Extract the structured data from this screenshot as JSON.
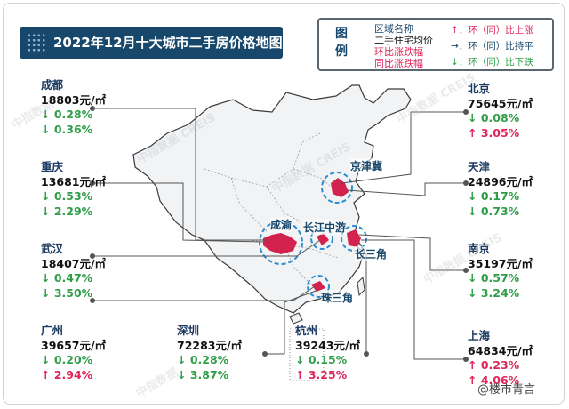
{
  "title": "2022年12月十大城市二手房价格地图",
  "legend": {
    "heading": "图例",
    "lines": [
      "区域名称",
      "二手住宅均价",
      "环比涨跌幅",
      "同比涨跌幅"
    ],
    "arrows": [
      "↑：环（同）比上涨",
      "→：环（同）比持平",
      "↓：环（同）比下跌"
    ],
    "colors": {
      "region": "#17476b",
      "price": "#111111",
      "mom": "#e0255a",
      "yoy": "#e0255a",
      "up": "#e0255a",
      "flat": "#17476b",
      "down": "#2f9e49"
    }
  },
  "regions": [
    "京津冀",
    "成渝",
    "长江中游",
    "长三角",
    "珠三角"
  ],
  "cities": {
    "chengdu": {
      "name": "成都",
      "price": "18803元/㎡",
      "mom": "↓ 0.28%",
      "yoy": "↓ 0.36%"
    },
    "chongqing": {
      "name": "重庆",
      "price": "13681元/㎡",
      "mom": "↓ 0.53%",
      "yoy": "↓ 2.29%"
    },
    "wuhan": {
      "name": "武汉",
      "price": "18407元/㎡",
      "mom": "↓ 0.47%",
      "yoy": "↓ 3.50%"
    },
    "guangzhou": {
      "name": "广州",
      "price": "39657元/㎡",
      "mom": "↓ 0.20%",
      "yoy": "↑ 2.94%"
    },
    "shenzhen": {
      "name": "深圳",
      "price": "72283元/㎡",
      "mom": "↓ 0.28%",
      "yoy": "↓ 3.87%"
    },
    "hangzhou": {
      "name": "杭州",
      "price": "39243元/㎡",
      "mom": "↓ 0.15%",
      "yoy": "↑ 3.25%"
    },
    "beijing": {
      "name": "北京",
      "price": "75645元/㎡",
      "mom": "↓ 0.08%",
      "yoy": "↑ 3.05%"
    },
    "tianjin": {
      "name": "天津",
      "price": "24896元/㎡",
      "mom": "↓ 0.17%",
      "yoy": "↓ 0.73%"
    },
    "nanjing": {
      "name": "南京",
      "price": "35197元/㎡",
      "mom": "↓ 0.57%",
      "yoy": "↓ 3.24%"
    },
    "shanghai": {
      "name": "上海",
      "price": "64834元/㎡",
      "mom": "↑ 0.23%",
      "yoy": "↑ 4.06%"
    }
  },
  "watermark": [
    "中指数据",
    "CREIS"
  ],
  "footer": "@楼市青言"
}
